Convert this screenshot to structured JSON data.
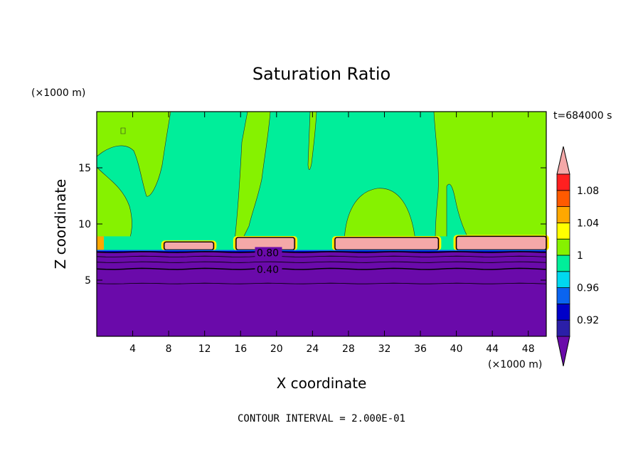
{
  "chart_data": {
    "type": "heatmap",
    "title": "Saturation Ratio",
    "xlabel": "X coordinate",
    "ylabel": "Z coordinate",
    "x_unit_label": "(×1000 m)",
    "y_unit_label": "(×1000 m)",
    "time_label": "t=684000 s",
    "footer": "CONTOUR INTERVAL = 2.000E-01",
    "xlim": [
      0,
      50
    ],
    "ylim": [
      0,
      20
    ],
    "x_ticks": [
      4,
      8,
      12,
      16,
      20,
      24,
      28,
      32,
      36,
      40,
      44,
      48
    ],
    "y_ticks": [
      5,
      10,
      15
    ],
    "contour_labels": [
      {
        "text": "0.80",
        "x": 17.6,
        "z": 7.5
      },
      {
        "text": "0.40",
        "x": 17.6,
        "z": 6.0
      }
    ],
    "colorbar": {
      "tick_labels": [
        "1.08",
        "1.04",
        "1",
        "0.96",
        "0.92"
      ],
      "levels": [
        0.9,
        0.92,
        0.94,
        0.96,
        0.98,
        1.0,
        1.02,
        1.04,
        1.06,
        1.08,
        1.1
      ],
      "colors": [
        "#6a0aaa",
        "#2b1fa8",
        "#0000c8",
        "#0a64f0",
        "#00d8f0",
        "#00ee9a",
        "#86f200",
        "#ffff00",
        "#ffa800",
        "#ff5a00",
        "#ff2020",
        "#f4a8a8"
      ]
    },
    "regions": {
      "dry_layer_top_z": 7.5,
      "moist_patches": [
        {
          "x0": 7.5,
          "x1": 13.0,
          "z0": 7.7,
          "z1": 8.4
        },
        {
          "x0": 15.5,
          "x1": 22.0,
          "z0": 7.7,
          "z1": 8.8
        },
        {
          "x0": 26.5,
          "x1": 38.0,
          "z0": 7.7,
          "z1": 8.8
        },
        {
          "x0": 40.0,
          "x1": 50.0,
          "z0": 7.7,
          "z1": 8.9
        }
      ]
    }
  }
}
